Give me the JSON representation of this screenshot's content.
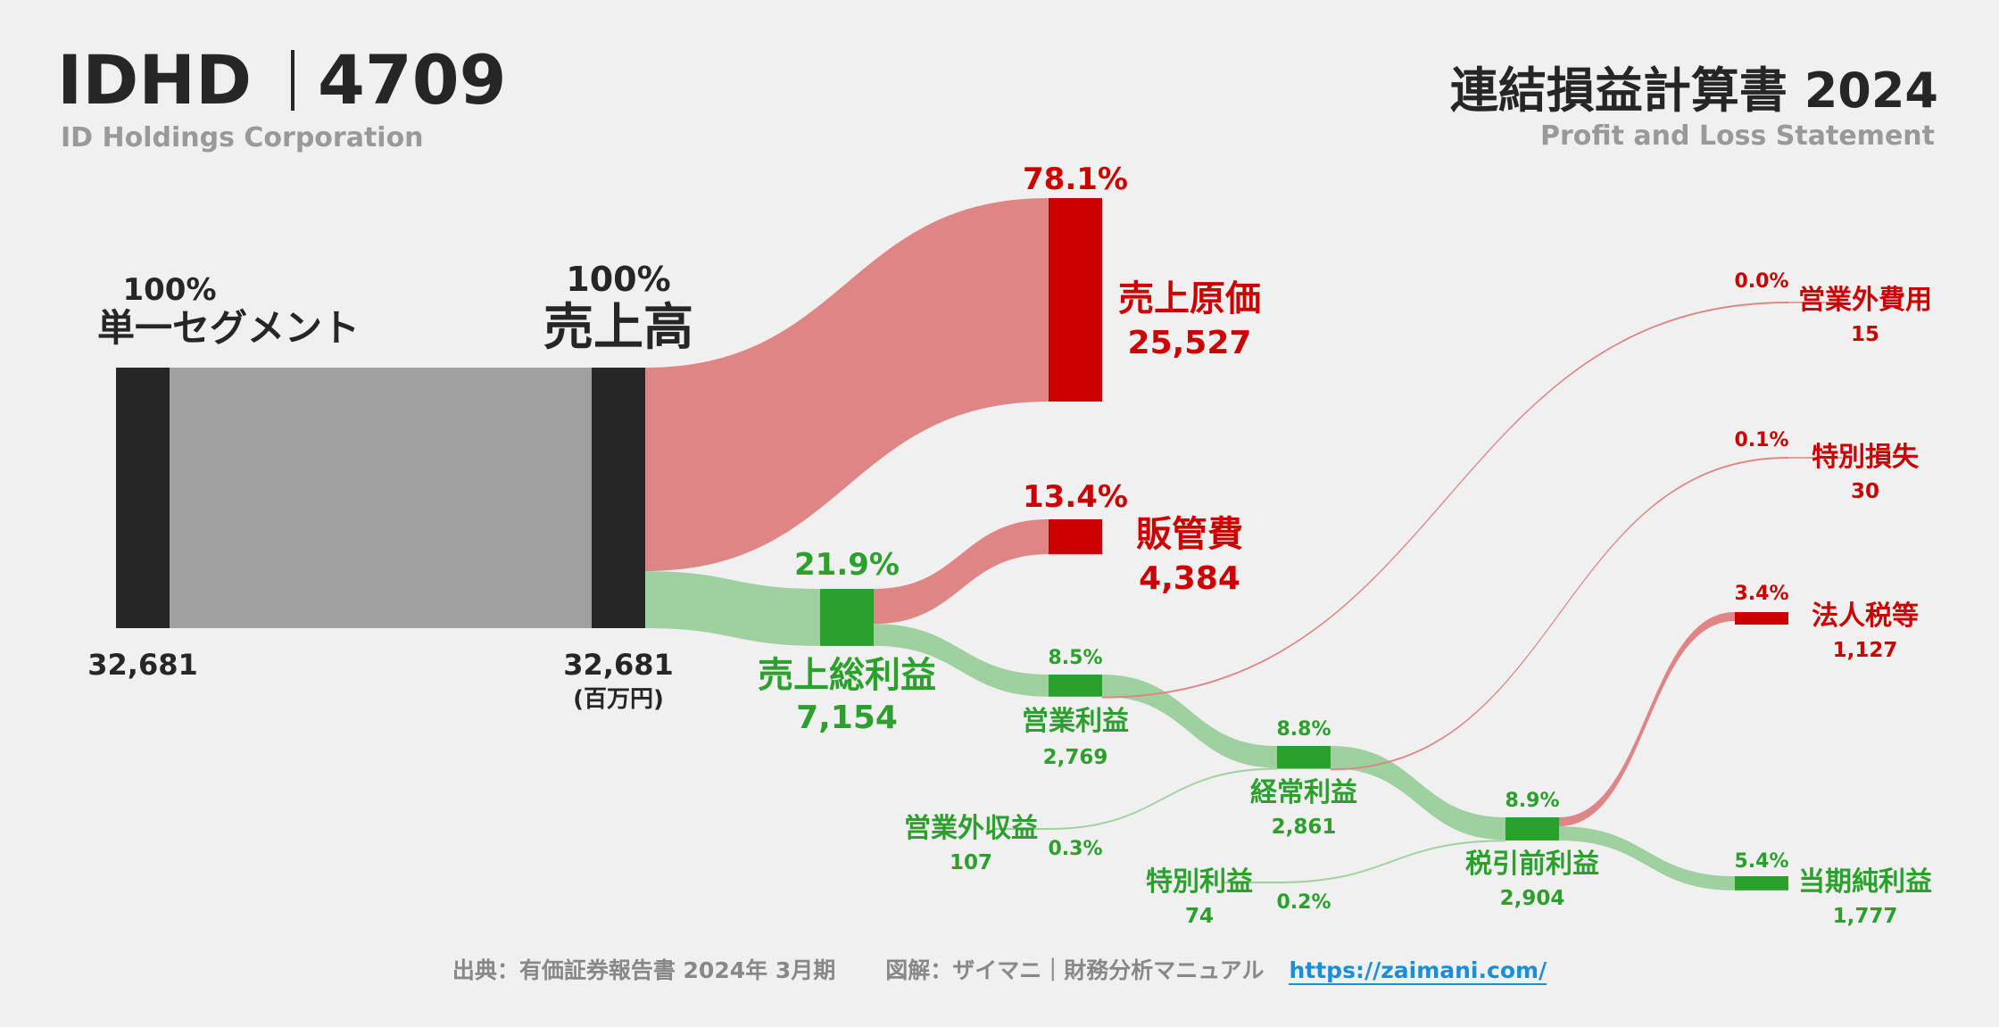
{
  "header": {
    "ticker": "IDHD",
    "code": "4709",
    "company": "ID Holdings Corporation",
    "title_jp": "連結損益計算書 2024",
    "title_en": "Profit and Loss Statement"
  },
  "colors": {
    "dark": "#262626",
    "gray_flow": "#a0a0a0",
    "cost": "#cc0000",
    "cost_flow": "#e08585",
    "profit": "#2ca02c",
    "profit_flow": "#9fd09f",
    "label": "#262626"
  },
  "chart_data": {
    "type": "sankey",
    "unit": "(百万円)",
    "nodes": [
      {
        "id": "segment",
        "name": "単一セグメント",
        "value": "32,681",
        "pct": "100%",
        "kind": "source"
      },
      {
        "id": "revenue",
        "name": "売上高",
        "value": "32,681",
        "pct": "100%",
        "kind": "source"
      },
      {
        "id": "cogs",
        "name": "売上原価",
        "value": "25,527",
        "pct": "78.1%",
        "kind": "cost"
      },
      {
        "id": "gross",
        "name": "売上総利益",
        "value": "7,154",
        "pct": "21.9%",
        "kind": "profit"
      },
      {
        "id": "sga",
        "name": "販管費",
        "value": "4,384",
        "pct": "13.4%",
        "kind": "cost"
      },
      {
        "id": "op",
        "name": "営業利益",
        "value": "2,769",
        "pct": "8.5%",
        "kind": "profit"
      },
      {
        "id": "nonop_inc",
        "name": "営業外収益",
        "value": "107",
        "pct": "0.3%",
        "kind": "profit"
      },
      {
        "id": "nonop_exp",
        "name": "営業外費用",
        "value": "15",
        "pct": "0.0%",
        "kind": "cost"
      },
      {
        "id": "ordinary",
        "name": "経常利益",
        "value": "2,861",
        "pct": "8.8%",
        "kind": "profit"
      },
      {
        "id": "ext_gain",
        "name": "特別利益",
        "value": "74",
        "pct": "0.2%",
        "kind": "profit"
      },
      {
        "id": "ext_loss",
        "name": "特別損失",
        "value": "30",
        "pct": "0.1%",
        "kind": "cost"
      },
      {
        "id": "pretax",
        "name": "税引前利益",
        "value": "2,904",
        "pct": "8.9%",
        "kind": "profit"
      },
      {
        "id": "tax",
        "name": "法人税等",
        "value": "1,127",
        "pct": "3.4%",
        "kind": "cost"
      },
      {
        "id": "net",
        "name": "当期純利益",
        "value": "1,777",
        "pct": "5.4%",
        "kind": "profit"
      }
    ],
    "links": [
      {
        "source": "segment",
        "target": "revenue",
        "value": 32681
      },
      {
        "source": "revenue",
        "target": "cogs",
        "value": 25527
      },
      {
        "source": "revenue",
        "target": "gross",
        "value": 7154
      },
      {
        "source": "gross",
        "target": "sga",
        "value": 4384
      },
      {
        "source": "gross",
        "target": "op",
        "value": 2769
      },
      {
        "source": "op",
        "target": "ordinary",
        "value": 2754
      },
      {
        "source": "op",
        "target": "nonop_exp",
        "value": 15
      },
      {
        "source": "nonop_inc",
        "target": "ordinary",
        "value": 107
      },
      {
        "source": "ordinary",
        "target": "pretax",
        "value": 2831
      },
      {
        "source": "ordinary",
        "target": "ext_loss",
        "value": 30
      },
      {
        "source": "ext_gain",
        "target": "pretax",
        "value": 74
      },
      {
        "source": "pretax",
        "target": "tax",
        "value": 1127
      },
      {
        "source": "pretax",
        "target": "net",
        "value": 1777
      }
    ]
  },
  "footer": {
    "source": "出典：有価証券報告書 2024年 3月期",
    "credit": "図解：ザイマニ｜財務分析マニュアル",
    "link": "https://zaimani.com/"
  }
}
